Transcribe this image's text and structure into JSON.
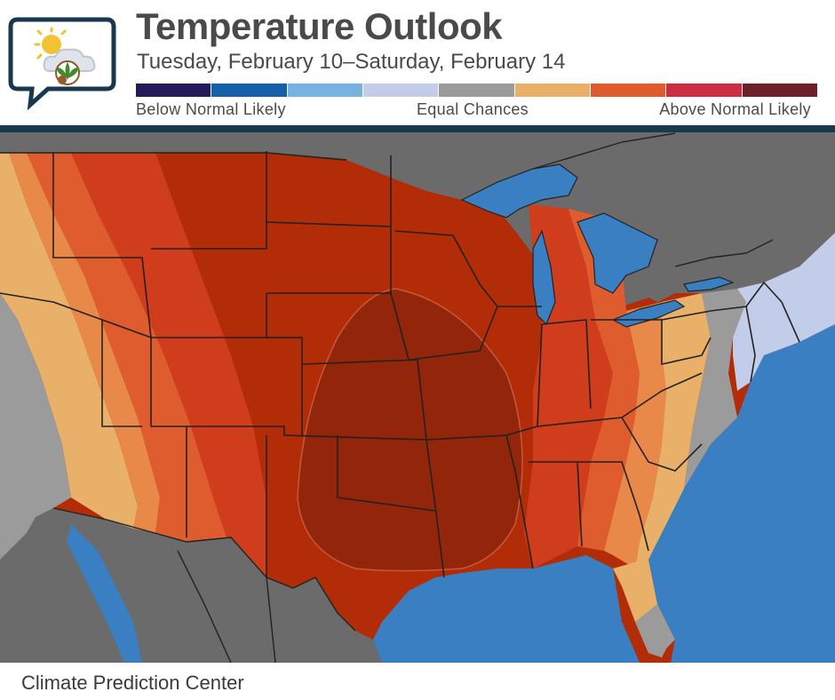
{
  "header": {
    "title": "Temperature Outlook",
    "subtitle": "Tuesday, February 10–Saturday, February 14"
  },
  "legend": {
    "left_label": "Below Normal Likely",
    "mid_label": "Equal Chances",
    "right_label": "Above Normal Likely",
    "colors": [
      "#231b5a",
      "#1660a8",
      "#78b3e0",
      "#c2cdea",
      "#9b9b9b",
      "#e9b06a",
      "#df5c2e",
      "#cb2d42",
      "#6e2029"
    ]
  },
  "map": {
    "ocean_color": "#3a7fc1",
    "land_nodata_color": "#6b6b6b",
    "category_colors": {
      "equal_chances": "#9b9b9b",
      "below_normal_slight": "#c2cdea",
      "above_33": "#e9b06a",
      "above_40": "#e8894a",
      "above_50": "#df5c2e",
      "above_60": "#cf3d1c",
      "above_70": "#b22c08",
      "above_80": "#93250a"
    }
  },
  "footer": {
    "credit": "Climate Prediction Center"
  }
}
